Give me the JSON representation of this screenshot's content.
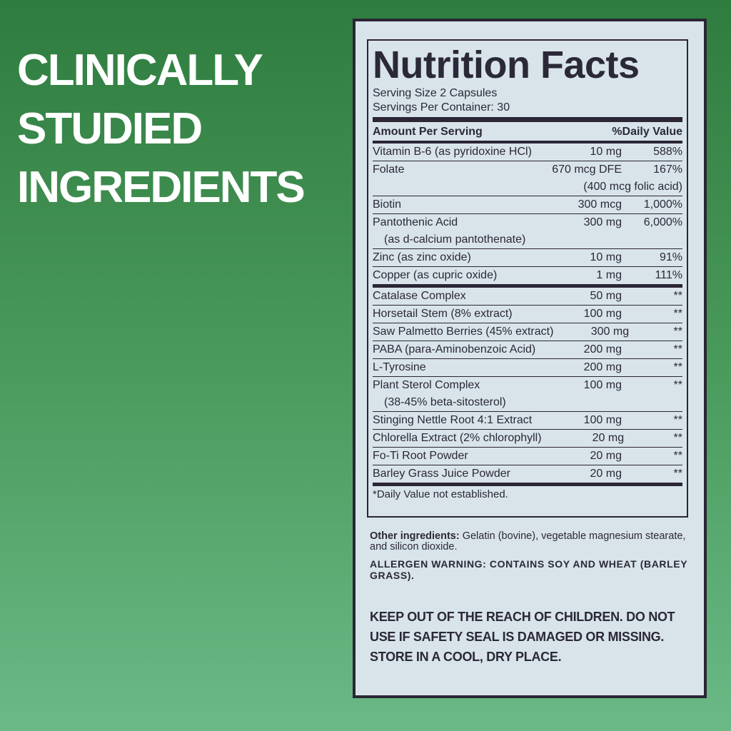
{
  "headline": [
    "CLINICALLY",
    "STUDIED",
    "INGREDIENTS"
  ],
  "label": {
    "title": "Nutrition Facts",
    "serving_size": "Serving Size 2 Capsules",
    "servings_per_container": "Servings Per Container: 30",
    "header": [
      "Amount Per Serving",
      "%Daily Value"
    ],
    "groups": [
      [
        {
          "name": "Vitamin B-6 (as pyridoxine HCl)",
          "amount": "10 mg",
          "dv": "588%"
        },
        {
          "name": "Folate",
          "amount": "670 mcg DFE",
          "dv": "167%",
          "sub_amount": "(400 mcg folic acid)"
        },
        {
          "name": "Biotin",
          "amount": "300 mcg",
          "dv": "1,000%"
        },
        {
          "name": "Pantothenic Acid",
          "amount": "300 mg",
          "dv": "6,000%",
          "sub_name": "(as d-calcium pantothenate)"
        },
        {
          "name": "Zinc (as zinc oxide)",
          "amount": "10 mg",
          "dv": "91%"
        },
        {
          "name": "Copper (as cupric oxide)",
          "amount": "1 mg",
          "dv": "111%"
        }
      ],
      [
        {
          "name": "Catalase Complex",
          "amount": "50 mg",
          "dv": "**"
        },
        {
          "name": "Horsetail Stem (8% extract)",
          "amount": "100 mg",
          "dv": "**"
        },
        {
          "name": "Saw Palmetto Berries (45% extract)",
          "amount": "300 mg",
          "dv": "**"
        },
        {
          "name": "PABA (para-Aminobenzoic Acid)",
          "amount": "200 mg",
          "dv": "**"
        },
        {
          "name": "L-Tyrosine",
          "amount": "200 mg",
          "dv": "**"
        },
        {
          "name": "Plant Sterol Complex",
          "amount": "100 mg",
          "dv": "**",
          "sub_name": "(38-45% beta-sitosterol)"
        },
        {
          "name": "Stinging Nettle Root 4:1 Extract",
          "amount": "100 mg",
          "dv": "**"
        },
        {
          "name": "Chlorella Extract (2% chlorophyll)",
          "amount": "20 mg",
          "dv": "**"
        },
        {
          "name": "Fo-Ti Root Powder",
          "amount": "20 mg",
          "dv": "**"
        },
        {
          "name": "Barley Grass Juice Powder",
          "amount": "20 mg",
          "dv": "**"
        }
      ]
    ],
    "footnote": "*Daily Value not established."
  },
  "other_ingredients": {
    "label": "Other ingredients:",
    "text": "Gelatin (bovine), vegetable magnesium stearate, and silicon dioxide."
  },
  "allergen": "ALLERGEN WARNING: CONTAINS SOY AND WHEAT (BARLEY GRASS).",
  "warning": "KEEP OUT OF THE REACH OF CHILDREN. DO NOT USE IF SAFETY SEAL IS DAMAGED OR MISSING. STORE IN A COOL, DRY PLACE."
}
